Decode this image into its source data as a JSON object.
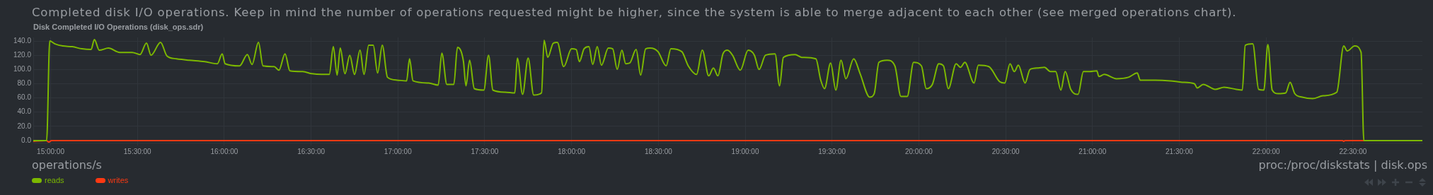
{
  "chart_data": {
    "type": "line",
    "subtitle": "Completed disk I/O operations. Keep in mind the number of operations requested might be higher, since the system is able to merge adjacent to each other (see merged operations chart).",
    "title": "Disk Completed I/O Operations (disk_ops.sdr)",
    "annotations": [
      "operations/s",
      "proc:/proc/diskstats | disk.ops"
    ],
    "xlim": [
      14.9,
      22.9
    ],
    "xticks": [
      {
        "value": 15,
        "label": "15:00:00"
      },
      {
        "value": 15.5,
        "label": "15:30:00"
      },
      {
        "value": 16,
        "label": "16:00:00"
      },
      {
        "value": 16.5,
        "label": "16:30:00"
      },
      {
        "value": 17,
        "label": "17:00:00"
      },
      {
        "value": 17.5,
        "label": "17:30:00"
      },
      {
        "value": 18,
        "label": "18:00:00"
      },
      {
        "value": 18.5,
        "label": "18:30:00"
      },
      {
        "value": 19,
        "label": "19:00:00"
      },
      {
        "value": 19.5,
        "label": "19:30:00"
      },
      {
        "value": 20,
        "label": "20:00:00"
      },
      {
        "value": 20.5,
        "label": "20:30:00"
      },
      {
        "value": 21,
        "label": "21:00:00"
      },
      {
        "value": 21.5,
        "label": "21:30:00"
      },
      {
        "value": 22,
        "label": "22:00:00"
      },
      {
        "value": 22.5,
        "label": "22:30:00"
      }
    ],
    "ylim": [
      -3,
      145
    ],
    "yticks": [
      {
        "value": 0,
        "label": "0.0"
      },
      {
        "value": 20,
        "label": "20.0"
      },
      {
        "value": 40,
        "label": "40.0"
      },
      {
        "value": 60,
        "label": "60.0"
      },
      {
        "value": 80,
        "label": "80.0"
      },
      {
        "value": 100,
        "label": "100.0"
      },
      {
        "value": 120,
        "label": "120.0"
      },
      {
        "value": 140,
        "label": "140.0"
      }
    ],
    "grid": true,
    "legend": "bottom left",
    "series": [
      {
        "name": "reads",
        "color": "#7cb800",
        "x": [
          14.9,
          14.977,
          14.995,
          15.025,
          15.07,
          15.125,
          15.18,
          15.233,
          15.252,
          15.28,
          15.333,
          15.398,
          15.47,
          15.515,
          15.552,
          15.578,
          15.633,
          15.67,
          15.725,
          15.797,
          15.888,
          15.96,
          15.988,
          16.005,
          16.088,
          16.133,
          16.16,
          16.197,
          16.223,
          16.287,
          16.315,
          16.35,
          16.378,
          16.452,
          16.505,
          16.56,
          16.605,
          16.628,
          16.65,
          16.668,
          16.695,
          16.723,
          16.75,
          16.782,
          16.805,
          16.832,
          16.858,
          16.883,
          16.91,
          16.94,
          16.995,
          17.05,
          17.067,
          17.087,
          17.177,
          17.232,
          17.253,
          17.282,
          17.322,
          17.343,
          17.377,
          17.392,
          17.413,
          17.44,
          17.495,
          17.522,
          17.547,
          17.618,
          17.673,
          17.688,
          17.718,
          17.75,
          17.782,
          17.827,
          17.842,
          17.863,
          17.895,
          17.918,
          17.955,
          18.0,
          18.027,
          18.045,
          18.072,
          18.1,
          18.122,
          18.148,
          18.172,
          18.212,
          18.237,
          18.263,
          18.29,
          18.312,
          18.335,
          18.372,
          18.398,
          18.427,
          18.453,
          18.498,
          18.545,
          18.572,
          18.635,
          18.672,
          18.72,
          18.753,
          18.79,
          18.817,
          18.843,
          18.872,
          18.898,
          18.927,
          18.972,
          19.017,
          19.053,
          19.08,
          19.117,
          19.172,
          19.198,
          19.22,
          19.288,
          19.325,
          19.407,
          19.435,
          19.457,
          19.492,
          19.522,
          19.552,
          19.58,
          19.625,
          19.662,
          19.717,
          19.743,
          19.77,
          19.817,
          19.862,
          19.897,
          19.933,
          19.97,
          20.015,
          20.043,
          20.078,
          20.115,
          20.142,
          20.17,
          20.215,
          20.24,
          20.265,
          20.318,
          20.343,
          20.403,
          20.465,
          20.495,
          20.525,
          20.55,
          20.573,
          20.612,
          20.64,
          20.688,
          20.723,
          20.758,
          20.788,
          20.818,
          20.843,
          20.875,
          20.917,
          20.948,
          20.983,
          21.025,
          21.037,
          21.068,
          21.138,
          21.207,
          21.258,
          21.275,
          21.362,
          21.448,
          21.517,
          21.587,
          21.603,
          21.638,
          21.707,
          21.758,
          21.828,
          21.863,
          21.88,
          21.923,
          21.957,
          21.987,
          22.01,
          22.035,
          22.07,
          22.113,
          22.138,
          22.165,
          22.208,
          22.268,
          22.328,
          22.407,
          22.447,
          22.467,
          22.51,
          22.547,
          22.563,
          22.9
        ],
        "values": [
          0,
          0,
          140,
          136,
          133,
          132,
          129,
          128,
          142,
          127,
          130,
          124,
          124,
          121,
          137,
          120,
          138,
          119,
          115,
          113,
          111,
          108,
          122,
          108,
          105,
          121,
          107,
          138,
          105,
          104,
          99,
          122,
          98,
          97,
          94,
          93,
          93,
          132,
          92,
          130,
          94,
          120,
          93,
          127,
          93,
          134,
          134,
          95,
          134,
          89,
          85,
          84,
          115,
          84,
          81,
          78,
          123,
          79,
          79,
          131,
          112,
          77,
          113,
          73,
          71,
          120,
          71,
          68,
          67,
          116,
          65,
          116,
          64,
          67,
          141,
          117,
          137,
          138,
          104,
          129,
          128,
          111,
          129,
          132,
          107,
          132,
          106,
          130,
          129,
          100,
          127,
          108,
          109,
          128,
          92,
          129,
          130,
          125,
          105,
          129,
          125,
          105,
          93,
          127,
          91,
          102,
          91,
          122,
          127,
          120,
          99,
          127,
          120,
          100,
          120,
          122,
          77,
          117,
          121,
          117,
          115,
          85,
          73,
          109,
          71,
          113,
          87,
          115,
          94,
          61,
          66,
          110,
          113,
          105,
          62,
          62,
          110,
          105,
          73,
          79,
          108,
          105,
          73,
          108,
          103,
          110,
          81,
          106,
          104,
          83,
          81,
          108,
          97,
          106,
          81,
          100,
          102,
          103,
          97,
          97,
          71,
          97,
          72,
          65,
          97,
          97,
          98,
          90,
          93,
          87,
          89,
          95,
          85,
          85,
          84,
          82,
          80,
          74,
          79,
          72,
          75,
          72,
          71,
          134,
          136,
          72,
          71,
          135,
          71,
          66,
          67,
          82,
          66,
          61,
          59,
          63,
          68,
          133,
          126,
          133,
          124,
          0,
          0
        ]
      },
      {
        "name": "writes",
        "color": "#fe3912",
        "x": [
          14.9,
          14.975,
          14.99,
          15.005,
          22.44,
          22.447,
          22.455,
          22.9
        ],
        "values": [
          -1,
          0,
          -2,
          0,
          0,
          -1,
          0,
          0
        ]
      }
    ]
  }
}
